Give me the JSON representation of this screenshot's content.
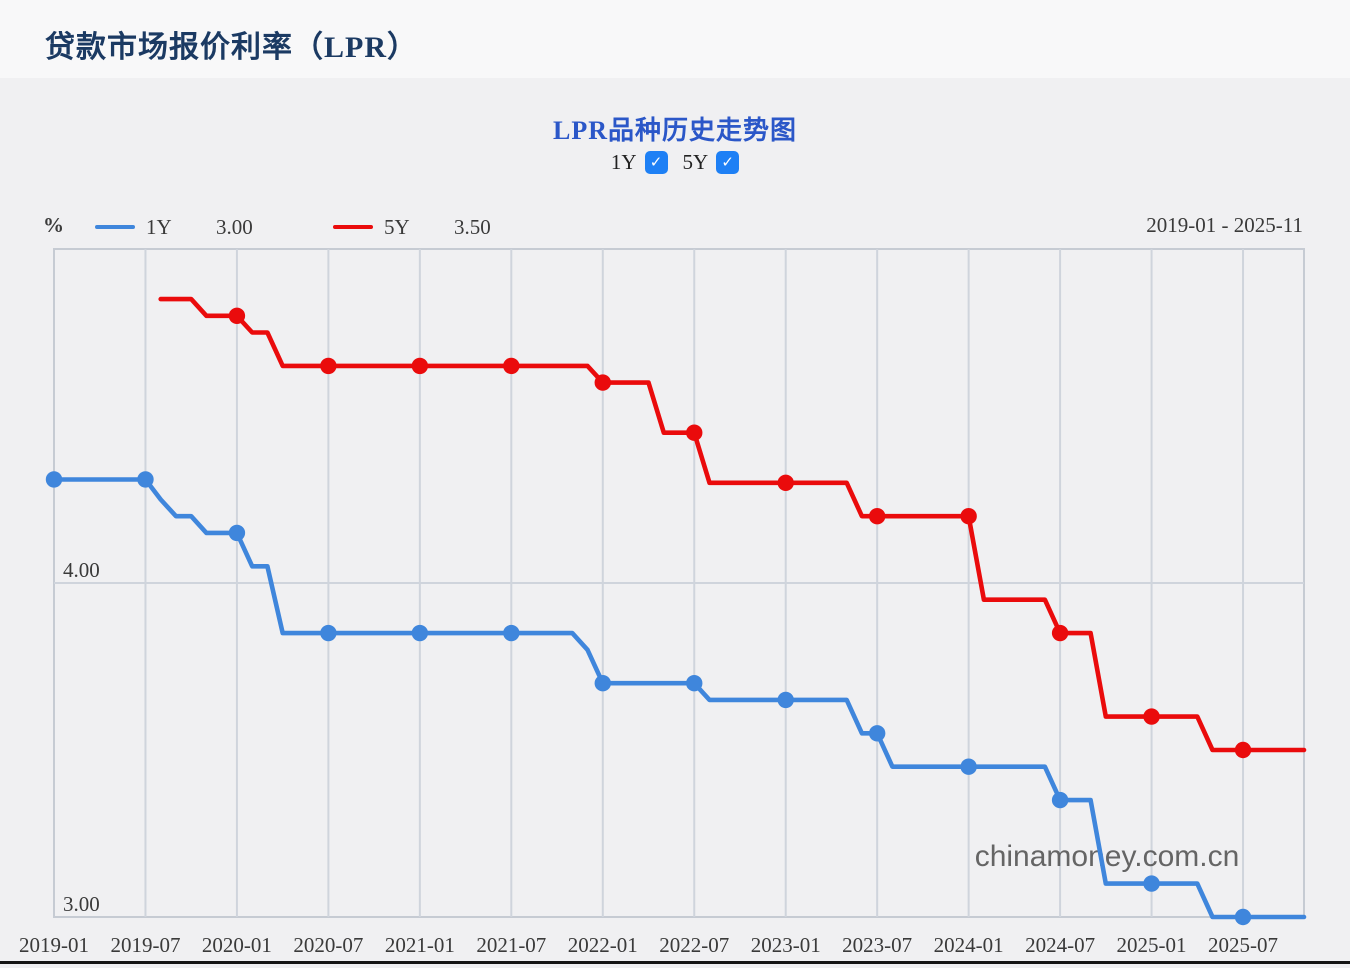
{
  "page": {
    "header_title": "贷款市场报价利率（LPR）",
    "watermark": "chinamoney.com.cn"
  },
  "chart_header": {
    "title": "LPR品种历史走势图",
    "toggles": [
      {
        "label": "1Y",
        "checked": true,
        "check_glyph": "✓"
      },
      {
        "label": "5Y",
        "checked": true,
        "check_glyph": "✓"
      }
    ]
  },
  "legend": {
    "unit": "%",
    "items": [
      {
        "label": "1Y",
        "value": "3.00",
        "color": "#3f86dc"
      },
      {
        "label": "5Y",
        "value": "3.50",
        "color": "#ea0b0c"
      }
    ],
    "range_label": "2019-01 - 2025-11"
  },
  "chart_data": {
    "type": "line",
    "title": "LPR品种历史走势图",
    "ylabel": "%",
    "x_start": "2019-01",
    "x_end": "2025-11",
    "ylim": [
      3.0,
      5.0
    ],
    "grid": true,
    "y_gridlines": [
      4.0
    ],
    "y_tick_labels": [
      {
        "value": 4.0,
        "label": "4.00"
      },
      {
        "value": 3.0,
        "label": "3.00"
      }
    ],
    "x_tick_labels": [
      "2019-01",
      "2019-07",
      "2020-01",
      "2020-07",
      "2021-01",
      "2021-07",
      "2022-01",
      "2022-07",
      "2023-01",
      "2023-07",
      "2024-01",
      "2024-07",
      "2025-01",
      "2025-07"
    ],
    "x_tick_interval_months": 6,
    "marker_every_months": 6,
    "series": [
      {
        "name": "1Y",
        "color": "#3f86dc",
        "latest_value": "3.00",
        "monthly_values": [
          4.31,
          4.31,
          4.31,
          4.31,
          4.31,
          4.31,
          4.31,
          4.25,
          4.2,
          4.2,
          4.15,
          4.15,
          4.15,
          4.05,
          4.05,
          3.85,
          3.85,
          3.85,
          3.85,
          3.85,
          3.85,
          3.85,
          3.85,
          3.85,
          3.85,
          3.85,
          3.85,
          3.85,
          3.85,
          3.85,
          3.85,
          3.85,
          3.85,
          3.85,
          3.85,
          3.8,
          3.7,
          3.7,
          3.7,
          3.7,
          3.7,
          3.7,
          3.7,
          3.65,
          3.65,
          3.65,
          3.65,
          3.65,
          3.65,
          3.65,
          3.65,
          3.65,
          3.65,
          3.55,
          3.55,
          3.45,
          3.45,
          3.45,
          3.45,
          3.45,
          3.45,
          3.45,
          3.45,
          3.45,
          3.45,
          3.45,
          3.35,
          3.35,
          3.35,
          3.1,
          3.1,
          3.1,
          3.1,
          3.1,
          3.1,
          3.1,
          3.0,
          3.0,
          3.0,
          3.0,
          3.0,
          3.0,
          3.0
        ]
      },
      {
        "name": "5Y",
        "color": "#ea0b0c",
        "latest_value": "3.50",
        "monthly_values": [
          null,
          null,
          null,
          null,
          null,
          null,
          null,
          4.85,
          4.85,
          4.85,
          4.8,
          4.8,
          4.8,
          4.75,
          4.75,
          4.65,
          4.65,
          4.65,
          4.65,
          4.65,
          4.65,
          4.65,
          4.65,
          4.65,
          4.65,
          4.65,
          4.65,
          4.65,
          4.65,
          4.65,
          4.65,
          4.65,
          4.65,
          4.65,
          4.65,
          4.65,
          4.6,
          4.6,
          4.6,
          4.6,
          4.45,
          4.45,
          4.45,
          4.3,
          4.3,
          4.3,
          4.3,
          4.3,
          4.3,
          4.3,
          4.3,
          4.3,
          4.3,
          4.2,
          4.2,
          4.2,
          4.2,
          4.2,
          4.2,
          4.2,
          4.2,
          3.95,
          3.95,
          3.95,
          3.95,
          3.95,
          3.85,
          3.85,
          3.85,
          3.6,
          3.6,
          3.6,
          3.6,
          3.6,
          3.6,
          3.6,
          3.5,
          3.5,
          3.5,
          3.5,
          3.5,
          3.5,
          3.5
        ]
      }
    ]
  },
  "style": {
    "gridline_color": "#cfd4dc",
    "border_color": "#c6cbd3",
    "tick_text_color": "#3a3a3a",
    "watermark_color": "#4d4d4d"
  }
}
